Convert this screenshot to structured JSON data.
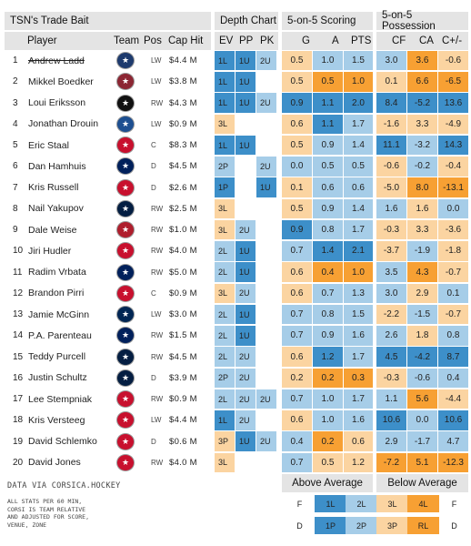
{
  "headers": {
    "title": "TSN's Trade Bait",
    "depth": "Depth Chart",
    "scoring": "5-on-5 Scoring",
    "possession": "5-on-5 Possession",
    "player": "Player",
    "team": "Team",
    "pos": "Pos",
    "cap": "Cap Hit",
    "ev": "EV",
    "pp": "PP",
    "pk": "PK",
    "g": "G",
    "a": "A",
    "pts": "PTS",
    "cf": "CF",
    "ca": "CA",
    "cplus": "C+/-"
  },
  "colors": {
    "dark_blue": "#3d8fc9",
    "light_blue": "#a6cde8",
    "light_orange": "#fbd4a1",
    "dark_orange": "#f7a033"
  },
  "rows": [
    {
      "rank": "1",
      "player": "Andrew Ladd",
      "strike": true,
      "team_icon": "jets-logo",
      "team_color": "#1e3b6e",
      "pos": "LW",
      "cap": "$4.4 M",
      "ev": "1L",
      "pp": "1U",
      "pk": "2U",
      "g": "0.5",
      "a": "1.0",
      "pts": "1.5",
      "cf": "3.0",
      "ca": "3.6",
      "cpm": "-0.6",
      "ev_c": "db",
      "pp_c": "db",
      "pk_c": "lb",
      "g_c": "lo",
      "a_c": "lb",
      "pts_c": "lb",
      "cf_c": "lb",
      "ca_c": "do",
      "cpm_c": "lo"
    },
    {
      "rank": "2",
      "player": "Mikkel Boedker",
      "team_icon": "coyotes-logo",
      "team_color": "#8c2633",
      "pos": "LW",
      "cap": "$3.8 M",
      "ev": "1L",
      "pp": "1U",
      "pk": "",
      "g": "0.5",
      "a": "0.5",
      "pts": "1.0",
      "cf": "0.1",
      "ca": "6.6",
      "cpm": "-6.5",
      "ev_c": "db",
      "pp_c": "db",
      "pk_c": "n",
      "g_c": "lo",
      "a_c": "do",
      "pts_c": "do",
      "cf_c": "lo",
      "ca_c": "do",
      "cpm_c": "do"
    },
    {
      "rank": "3",
      "player": "Loui Eriksson",
      "team_icon": "bruins-logo",
      "team_color": "#111111",
      "pos": "RW",
      "cap": "$4.3 M",
      "ev": "1L",
      "pp": "1U",
      "pk": "2U",
      "g": "0.9",
      "a": "1.1",
      "pts": "2.0",
      "cf": "8.4",
      "ca": "-5.2",
      "cpm": "13.6",
      "ev_c": "db",
      "pp_c": "db",
      "pk_c": "lb",
      "g_c": "db",
      "a_c": "db",
      "pts_c": "db",
      "cf_c": "db",
      "ca_c": "db",
      "cpm_c": "db"
    },
    {
      "rank": "4",
      "player": "Jonathan Drouin",
      "team_icon": "lightning-logo",
      "team_color": "#1d4f91",
      "pos": "LW",
      "cap": "$0.9 M",
      "ev": "3L",
      "pp": "",
      "pk": "",
      "g": "0.6",
      "a": "1.1",
      "pts": "1.7",
      "cf": "-1.6",
      "ca": "3.3",
      "cpm": "-4.9",
      "ev_c": "lo",
      "pp_c": "n",
      "pk_c": "n",
      "g_c": "lo",
      "a_c": "db",
      "pts_c": "lb",
      "cf_c": "lo",
      "ca_c": "lo",
      "cpm_c": "lo"
    },
    {
      "rank": "5",
      "player": "Eric Staal",
      "team_icon": "hurricanes-logo",
      "team_color": "#c8102e",
      "pos": "C",
      "cap": "$8.3 M",
      "ev": "1L",
      "pp": "1U",
      "pk": "",
      "g": "0.5",
      "a": "0.9",
      "pts": "1.4",
      "cf": "11.1",
      "ca": "-3.2",
      "cpm": "14.3",
      "ev_c": "db",
      "pp_c": "db",
      "pk_c": "n",
      "g_c": "lo",
      "a_c": "lb",
      "pts_c": "lb",
      "cf_c": "db",
      "ca_c": "lb",
      "cpm_c": "db"
    },
    {
      "rank": "6",
      "player": "Dan Hamhuis",
      "team_icon": "canucks-logo",
      "team_color": "#00205b",
      "pos": "D",
      "cap": "$4.5 M",
      "ev": "2P",
      "pp": "",
      "pk": "2U",
      "g": "0.0",
      "a": "0.5",
      "pts": "0.5",
      "cf": "-0.6",
      "ca": "-0.2",
      "cpm": "-0.4",
      "ev_c": "lb",
      "pp_c": "n",
      "pk_c": "lb",
      "g_c": "lb",
      "a_c": "lb",
      "pts_c": "lb",
      "cf_c": "lo",
      "ca_c": "lb",
      "cpm_c": "lo"
    },
    {
      "rank": "7",
      "player": "Kris Russell",
      "team_icon": "flames-logo",
      "team_color": "#c8102e",
      "pos": "D",
      "cap": "$2.6 M",
      "ev": "1P",
      "pp": "",
      "pk": "1U",
      "g": "0.1",
      "a": "0.6",
      "pts": "0.6",
      "cf": "-5.0",
      "ca": "8.0",
      "cpm": "-13.1",
      "ev_c": "db",
      "pp_c": "n",
      "pk_c": "db",
      "g_c": "lo",
      "a_c": "lb",
      "pts_c": "lb",
      "cf_c": "lo",
      "ca_c": "do",
      "cpm_c": "do"
    },
    {
      "rank": "8",
      "player": "Nail Yakupov",
      "team_icon": "oilers-logo",
      "team_color": "#041e42",
      "pos": "RW",
      "cap": "$2.5 M",
      "ev": "3L",
      "pp": "",
      "pk": "",
      "g": "0.5",
      "a": "0.9",
      "pts": "1.4",
      "cf": "1.6",
      "ca": "1.6",
      "cpm": "0.0",
      "ev_c": "lo",
      "pp_c": "n",
      "pk_c": "n",
      "g_c": "lo",
      "a_c": "lb",
      "pts_c": "lb",
      "cf_c": "lb",
      "ca_c": "lo",
      "cpm_c": "lb"
    },
    {
      "rank": "9",
      "player": "Dale Weise",
      "team_icon": "canadiens-logo",
      "team_color": "#af1e2d",
      "pos": "RW",
      "cap": "$1.0 M",
      "ev": "3L",
      "pp": "2U",
      "pk": "",
      "g": "0.9",
      "a": "0.8",
      "pts": "1.7",
      "cf": "-0.3",
      "ca": "3.3",
      "cpm": "-3.6",
      "ev_c": "lo",
      "pp_c": "lb",
      "pk_c": "n",
      "g_c": "db",
      "a_c": "lb",
      "pts_c": "lb",
      "cf_c": "lo",
      "ca_c": "lo",
      "cpm_c": "lo"
    },
    {
      "rank": "10",
      "player": "Jiri Hudler",
      "team_icon": "flames-logo",
      "team_color": "#c8102e",
      "pos": "RW",
      "cap": "$4.0 M",
      "ev": "2L",
      "pp": "1U",
      "pk": "",
      "g": "0.7",
      "a": "1.4",
      "pts": "2.1",
      "cf": "-3.7",
      "ca": "-1.9",
      "cpm": "-1.8",
      "ev_c": "lb",
      "pp_c": "db",
      "pk_c": "n",
      "g_c": "lb",
      "a_c": "db",
      "pts_c": "db",
      "cf_c": "lo",
      "ca_c": "lb",
      "cpm_c": "lo"
    },
    {
      "rank": "11",
      "player": "Radim Vrbata",
      "team_icon": "canucks-logo",
      "team_color": "#00205b",
      "pos": "RW",
      "cap": "$5.0 M",
      "ev": "2L",
      "pp": "1U",
      "pk": "",
      "g": "0.6",
      "a": "0.4",
      "pts": "1.0",
      "cf": "3.5",
      "ca": "4.3",
      "cpm": "-0.7",
      "ev_c": "lb",
      "pp_c": "db",
      "pk_c": "n",
      "g_c": "lo",
      "a_c": "do",
      "pts_c": "do",
      "cf_c": "lb",
      "ca_c": "do",
      "cpm_c": "lo"
    },
    {
      "rank": "12",
      "player": "Brandon Pirri",
      "team_icon": "panthers-logo",
      "team_color": "#c8102e",
      "pos": "C",
      "cap": "$0.9 M",
      "ev": "3L",
      "pp": "2U",
      "pk": "",
      "g": "0.6",
      "a": "0.7",
      "pts": "1.3",
      "cf": "3.0",
      "ca": "2.9",
      "cpm": "0.1",
      "ev_c": "lo",
      "pp_c": "lb",
      "pk_c": "n",
      "g_c": "lo",
      "a_c": "lb",
      "pts_c": "lb",
      "cf_c": "lb",
      "ca_c": "lo",
      "cpm_c": "lb"
    },
    {
      "rank": "13",
      "player": "Jamie McGinn",
      "team_icon": "sabres-logo",
      "team_color": "#002654",
      "pos": "LW",
      "cap": "$3.0 M",
      "ev": "2L",
      "pp": "1U",
      "pk": "",
      "g": "0.7",
      "a": "0.8",
      "pts": "1.5",
      "cf": "-2.2",
      "ca": "-1.5",
      "cpm": "-0.7",
      "ev_c": "lb",
      "pp_c": "db",
      "pk_c": "n",
      "g_c": "lb",
      "a_c": "lb",
      "pts_c": "lb",
      "cf_c": "lo",
      "ca_c": "lb",
      "cpm_c": "lo"
    },
    {
      "rank": "14",
      "player": "P.A. Parenteau",
      "team_icon": "leafs-logo",
      "team_color": "#00205b",
      "pos": "RW",
      "cap": "$1.5 M",
      "ev": "2L",
      "pp": "1U",
      "pk": "",
      "g": "0.7",
      "a": "0.9",
      "pts": "1.6",
      "cf": "2.6",
      "ca": "1.8",
      "cpm": "0.8",
      "ev_c": "lb",
      "pp_c": "db",
      "pk_c": "n",
      "g_c": "lb",
      "a_c": "lb",
      "pts_c": "lb",
      "cf_c": "lb",
      "ca_c": "lo",
      "cpm_c": "lb"
    },
    {
      "rank": "15",
      "player": "Teddy Purcell",
      "team_icon": "oilers-logo",
      "team_color": "#041e42",
      "pos": "RW",
      "cap": "$4.5 M",
      "ev": "2L",
      "pp": "2U",
      "pk": "",
      "g": "0.6",
      "a": "1.2",
      "pts": "1.7",
      "cf": "4.5",
      "ca": "-4.2",
      "cpm": "8.7",
      "ev_c": "lb",
      "pp_c": "lb",
      "pk_c": "n",
      "g_c": "lo",
      "a_c": "db",
      "pts_c": "lb",
      "cf_c": "db",
      "ca_c": "db",
      "cpm_c": "db"
    },
    {
      "rank": "16",
      "player": "Justin Schultz",
      "team_icon": "oilers-logo",
      "team_color": "#041e42",
      "pos": "D",
      "cap": "$3.9 M",
      "ev": "2P",
      "pp": "2U",
      "pk": "",
      "g": "0.2",
      "a": "0.2",
      "pts": "0.3",
      "cf": "-0.3",
      "ca": "-0.6",
      "cpm": "0.4",
      "ev_c": "lb",
      "pp_c": "lb",
      "pk_c": "n",
      "g_c": "lo",
      "a_c": "do",
      "pts_c": "do",
      "cf_c": "lo",
      "ca_c": "lb",
      "cpm_c": "lb"
    },
    {
      "rank": "17",
      "player": "Lee Stempniak",
      "team_icon": "devils-logo",
      "team_color": "#c8102e",
      "pos": "RW",
      "cap": "$0.9 M",
      "ev": "2L",
      "pp": "2U",
      "pk": "2U",
      "g": "0.7",
      "a": "1.0",
      "pts": "1.7",
      "cf": "1.1",
      "ca": "5.6",
      "cpm": "-4.4",
      "ev_c": "lb",
      "pp_c": "lb",
      "pk_c": "lb",
      "g_c": "lb",
      "a_c": "lb",
      "pts_c": "lb",
      "cf_c": "lb",
      "ca_c": "do",
      "cpm_c": "lo"
    },
    {
      "rank": "18",
      "player": "Kris Versteeg",
      "team_icon": "hurricanes-logo",
      "team_color": "#c8102e",
      "pos": "LW",
      "cap": "$4.4 M",
      "ev": "1L",
      "pp": "2U",
      "pk": "",
      "g": "0.6",
      "a": "1.0",
      "pts": "1.6",
      "cf": "10.6",
      "ca": "0.0",
      "cpm": "10.6",
      "ev_c": "db",
      "pp_c": "lb",
      "pk_c": "n",
      "g_c": "lo",
      "a_c": "lb",
      "pts_c": "lb",
      "cf_c": "db",
      "ca_c": "lb",
      "cpm_c": "db"
    },
    {
      "rank": "19",
      "player": "David Schlemko",
      "team_icon": "devils-logo",
      "team_color": "#c8102e",
      "pos": "D",
      "cap": "$0.6 M",
      "ev": "3P",
      "pp": "1U",
      "pk": "2U",
      "g": "0.4",
      "a": "0.2",
      "pts": "0.6",
      "cf": "2.9",
      "ca": "-1.7",
      "cpm": "4.7",
      "ev_c": "lo",
      "pp_c": "db",
      "pk_c": "lb",
      "g_c": "lb",
      "a_c": "do",
      "pts_c": "lo",
      "cf_c": "lb",
      "ca_c": "lb",
      "cpm_c": "lb"
    },
    {
      "rank": "20",
      "player": "David Jones",
      "team_icon": "flames-logo",
      "team_color": "#c8102e",
      "pos": "RW",
      "cap": "$4.0 M",
      "ev": "3L",
      "pp": "",
      "pk": "",
      "g": "0.7",
      "a": "0.5",
      "pts": "1.2",
      "cf": "-7.2",
      "ca": "5.1",
      "cpm": "-12.3",
      "ev_c": "lo",
      "pp_c": "n",
      "pk_c": "n",
      "g_c": "lb",
      "a_c": "lo",
      "pts_c": "lo",
      "cf_c": "do",
      "ca_c": "do",
      "cpm_c": "do"
    }
  ],
  "notes": {
    "source": "DATA VIA CORSICA.HOCKEY",
    "footnote_lines": [
      "ALL STATS PER 60 MIN,",
      "CORSI IS TEAM RELATIVE",
      "AND ADJUSTED FOR SCORE,",
      "VENUE, ZONE"
    ]
  },
  "legend": {
    "above": {
      "title": "Above Average",
      "cells": [
        [
          "F",
          "1L",
          "2L"
        ],
        [
          "D",
          "1P",
          "2P"
        ]
      ]
    },
    "below": {
      "title": "Below Average",
      "cells": [
        [
          "3L",
          "4L",
          "F"
        ],
        [
          "3P",
          "RL",
          "D"
        ]
      ]
    }
  }
}
